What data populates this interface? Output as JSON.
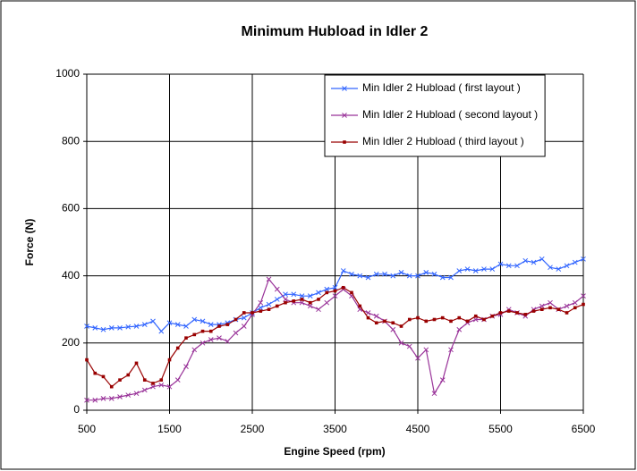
{
  "chart_data": {
    "type": "line",
    "title": "Minimum Hubload in Idler 2",
    "x_label": "Engine Speed  (rpm)",
    "y_label": "Force  (N)",
    "x": [
      500,
      600,
      700,
      800,
      900,
      1000,
      1100,
      1200,
      1300,
      1400,
      1500,
      1600,
      1700,
      1800,
      1900,
      2000,
      2100,
      2200,
      2300,
      2400,
      2500,
      2600,
      2700,
      2800,
      2900,
      3000,
      3100,
      3200,
      3300,
      3400,
      3500,
      3600,
      3700,
      3800,
      3900,
      4000,
      4100,
      4200,
      4300,
      4400,
      4500,
      4600,
      4700,
      4800,
      4900,
      5000,
      5100,
      5200,
      5300,
      5400,
      5500,
      5600,
      5700,
      5800,
      5900,
      6000,
      6100,
      6200,
      6300,
      6400,
      6500
    ],
    "series": [
      {
        "name": "Min Idler 2 Hubload ( first layout )",
        "color": "#3366ff",
        "marker": "x",
        "values": [
          250,
          245,
          240,
          245,
          245,
          248,
          250,
          255,
          265,
          235,
          260,
          255,
          250,
          270,
          265,
          255,
          255,
          260,
          270,
          275,
          290,
          305,
          315,
          330,
          345,
          345,
          340,
          340,
          350,
          360,
          365,
          415,
          405,
          400,
          395,
          405,
          405,
          400,
          410,
          400,
          400,
          410,
          405,
          395,
          395,
          415,
          420,
          415,
          420,
          420,
          435,
          430,
          430,
          445,
          440,
          450,
          425,
          420,
          430,
          440,
          450
        ]
      },
      {
        "name": "Min Idler 2 Hubload ( second layout )",
        "color": "#993399",
        "marker": "x",
        "values": [
          30,
          30,
          35,
          35,
          40,
          45,
          50,
          60,
          70,
          75,
          70,
          90,
          130,
          180,
          200,
          210,
          215,
          205,
          230,
          250,
          285,
          320,
          390,
          360,
          330,
          320,
          320,
          310,
          300,
          320,
          340,
          360,
          340,
          300,
          290,
          280,
          265,
          240,
          200,
          190,
          155,
          180,
          50,
          90,
          180,
          240,
          260,
          270,
          270,
          280,
          285,
          300,
          290,
          280,
          300,
          310,
          320,
          300,
          310,
          320,
          340
        ]
      },
      {
        "name": "Min Idler 2 Hubload ( third layout )",
        "color": "#990000",
        "marker": "square",
        "values": [
          150,
          110,
          100,
          70,
          90,
          105,
          140,
          90,
          80,
          90,
          150,
          185,
          215,
          225,
          235,
          235,
          250,
          255,
          270,
          290,
          290,
          295,
          300,
          310,
          320,
          325,
          330,
          320,
          330,
          350,
          355,
          365,
          350,
          310,
          275,
          260,
          265,
          260,
          250,
          270,
          275,
          265,
          270,
          275,
          265,
          275,
          265,
          280,
          270,
          280,
          290,
          295,
          290,
          285,
          295,
          300,
          305,
          300,
          290,
          305,
          315
        ]
      }
    ],
    "xlim": [
      500,
      6500
    ],
    "xticks": [
      500,
      1500,
      2500,
      3500,
      4500,
      5500,
      6500
    ],
    "ylim": [
      0,
      1000
    ],
    "yticks": [
      0,
      200,
      400,
      600,
      800,
      1000
    ],
    "grid": true,
    "legend": "top-right"
  }
}
